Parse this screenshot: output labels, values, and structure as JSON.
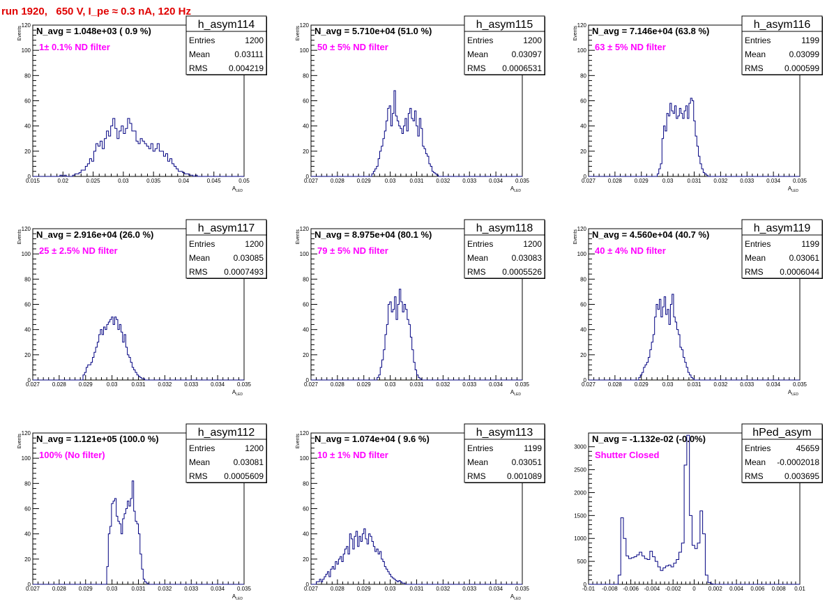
{
  "page_title": "run 1920,   650 V, I_pe ≈ 0.3 nA, 120 Hz",
  "colors": {
    "hist": "#000080",
    "magenta": "#ff00ff",
    "title": "#e00000"
  },
  "chart_data": [
    {
      "type": "bar",
      "name": "h_asym114",
      "nlabel": "N_avg = 1.048e+03 ( 0.9 %)",
      "note": "1± 0.1% ND filter",
      "stats": {
        "Entries": "1200",
        "Mean": "0.03111",
        "RMS": "0.004219"
      },
      "xlabel": "A",
      "xlabel_sub": "LED",
      "ylabel": "Events",
      "xlim": [
        0.015,
        0.05
      ],
      "ylim": [
        0,
        120
      ],
      "xticks": [
        "0.015",
        "0.02",
        "0.025",
        "0.03",
        "0.035",
        "0.04",
        "0.045",
        "0.05"
      ],
      "yticks": [
        "0",
        "20",
        "40",
        "60",
        "80",
        "100",
        "120"
      ],
      "bin_start": 0.0195,
      "bin_width": 0.00035,
      "values": [
        1,
        0,
        1,
        0,
        0,
        0,
        1,
        2,
        2,
        3,
        5,
        5,
        8,
        10,
        14,
        12,
        20,
        26,
        24,
        28,
        22,
        30,
        36,
        32,
        40,
        46,
        38,
        30,
        36,
        40,
        34,
        38,
        46,
        42,
        36,
        36,
        28,
        26,
        30,
        28,
        26,
        24,
        22,
        26,
        20,
        22,
        26,
        20,
        20,
        16,
        18,
        12,
        14,
        10,
        8,
        6,
        4,
        4,
        3,
        2,
        2,
        1,
        1,
        0,
        1,
        0
      ]
    },
    {
      "type": "bar",
      "name": "h_asym115",
      "nlabel": "N_avg = 5.710e+04 (51.0 %)",
      "note": "50 ± 5% ND filter",
      "stats": {
        "Entries": "1200",
        "Mean": "0.03097",
        "RMS": "0.0006531"
      },
      "xlabel": "A",
      "xlabel_sub": "LED",
      "ylabel": "Events",
      "xlim": [
        0.027,
        0.035
      ],
      "ylim": [
        0,
        120
      ],
      "xticks": [
        "0.027",
        "0.028",
        "0.029",
        "0.03",
        "0.031",
        "0.032",
        "0.033",
        "0.034",
        "0.035"
      ],
      "yticks": [
        "0",
        "20",
        "40",
        "60",
        "80",
        "100",
        "120"
      ],
      "bin_start": 0.0293,
      "bin_width": 6e-05,
      "values": [
        2,
        4,
        6,
        8,
        14,
        20,
        24,
        30,
        36,
        44,
        54,
        56,
        40,
        50,
        68,
        48,
        44,
        40,
        38,
        34,
        40,
        46,
        36,
        50,
        54,
        46,
        44,
        52,
        40,
        32,
        46,
        38,
        24,
        22,
        18,
        16,
        10,
        8,
        4,
        3,
        2,
        1
      ]
    },
    {
      "type": "bar",
      "name": "h_asym116",
      "nlabel": "N_avg = 7.146e+04 (63.8 %)",
      "note": "63 ± 5% ND filter",
      "stats": {
        "Entries": "1199",
        "Mean": "0.03099",
        "RMS": "0.000599"
      },
      "xlabel": "A",
      "xlabel_sub": "LED",
      "ylabel": "Events",
      "xlim": [
        0.027,
        0.035
      ],
      "ylim": [
        0,
        120
      ],
      "xticks": [
        "0.027",
        "0.028",
        "0.029",
        "0.03",
        "0.031",
        "0.032",
        "0.033",
        "0.034",
        "0.035"
      ],
      "yticks": [
        "0",
        "20",
        "40",
        "60",
        "80",
        "100",
        "120"
      ],
      "bin_start": 0.0296,
      "bin_width": 6e-05,
      "values": [
        2,
        6,
        10,
        30,
        40,
        36,
        50,
        48,
        58,
        52,
        50,
        56,
        46,
        48,
        54,
        50,
        46,
        52,
        56,
        46,
        58,
        62,
        60,
        44,
        32,
        24,
        16,
        10,
        6,
        3,
        2,
        1
      ]
    },
    {
      "type": "bar",
      "name": "h_asym117",
      "nlabel": "N_avg = 2.916e+04 (26.0 %)",
      "note": "25 ± 2.5% ND filter",
      "stats": {
        "Entries": "1200",
        "Mean": "0.03085",
        "RMS": "0.0007493"
      },
      "xlabel": "A",
      "xlabel_sub": "LED",
      "ylabel": "Events",
      "xlim": [
        0.027,
        0.035
      ],
      "ylim": [
        0,
        120
      ],
      "xticks": [
        "0.027",
        "0.028",
        "0.029",
        "0.03",
        "0.031",
        "0.032",
        "0.033",
        "0.034",
        "0.035"
      ],
      "yticks": [
        "0",
        "20",
        "40",
        "60",
        "80",
        "100",
        "120"
      ],
      "bin_start": 0.0289,
      "bin_width": 6e-05,
      "values": [
        4,
        6,
        10,
        12,
        12,
        14,
        18,
        22,
        26,
        30,
        36,
        40,
        36,
        42,
        40,
        44,
        46,
        48,
        50,
        44,
        50,
        48,
        40,
        44,
        38,
        30,
        36,
        26,
        20,
        18,
        14,
        10,
        8,
        6,
        4,
        3,
        2,
        1,
        1
      ]
    },
    {
      "type": "bar",
      "name": "h_asym118",
      "nlabel": "N_avg = 8.975e+04 (80.1 %)",
      "note": "79 ± 5% ND filter",
      "stats": {
        "Entries": "1200",
        "Mean": "0.03083",
        "RMS": "0.0005526"
      },
      "xlabel": "A",
      "xlabel_sub": "LED",
      "ylabel": "Events",
      "xlim": [
        0.027,
        0.035
      ],
      "ylim": [
        0,
        120
      ],
      "xticks": [
        "0.027",
        "0.028",
        "0.029",
        "0.03",
        "0.031",
        "0.032",
        "0.033",
        "0.034",
        "0.035"
      ],
      "yticks": [
        "0",
        "20",
        "40",
        "60",
        "80",
        "100",
        "120"
      ],
      "bin_start": 0.0295,
      "bin_width": 6e-05,
      "values": [
        2,
        4,
        10,
        16,
        24,
        36,
        44,
        60,
        62,
        54,
        56,
        66,
        48,
        60,
        72,
        62,
        54,
        60,
        56,
        48,
        44,
        34,
        24,
        14,
        8,
        4,
        2,
        1
      ]
    },
    {
      "type": "bar",
      "name": "h_asym119",
      "nlabel": "N_avg = 4.560e+04 (40.7 %)",
      "note": "40 ± 4% ND filter",
      "stats": {
        "Entries": "1199",
        "Mean": "0.03061",
        "RMS": "0.0006044"
      },
      "xlabel": "A",
      "xlabel_sub": "LED",
      "ylabel": "Events",
      "xlim": [
        0.027,
        0.035
      ],
      "ylim": [
        0,
        120
      ],
      "xticks": [
        "0.027",
        "0.028",
        "0.029",
        "0.03",
        "0.031",
        "0.032",
        "0.033",
        "0.034",
        "0.035"
      ],
      "yticks": [
        "0",
        "20",
        "40",
        "60",
        "80",
        "100",
        "120"
      ],
      "bin_start": 0.0289,
      "bin_width": 6e-05,
      "values": [
        2,
        4,
        6,
        10,
        12,
        14,
        18,
        24,
        30,
        36,
        50,
        60,
        56,
        64,
        50,
        58,
        66,
        52,
        56,
        44,
        60,
        68,
        50,
        46,
        40,
        36,
        26,
        24,
        18,
        14,
        10,
        6,
        4,
        2,
        1
      ]
    },
    {
      "type": "bar",
      "name": "h_asym112",
      "nlabel": "N_avg = 1.121e+05 (100.0 %)",
      "note": "100% (No filter)",
      "stats": {
        "Entries": "1200",
        "Mean": "0.03081",
        "RMS": "0.0005609"
      },
      "xlabel": "A",
      "xlabel_sub": "LED",
      "ylabel": "Events",
      "xlim": [
        0.027,
        0.035
      ],
      "ylim": [
        0,
        120
      ],
      "xticks": [
        "0.027",
        "0.028",
        "0.029",
        "0.03",
        "0.031",
        "0.032",
        "0.033",
        "0.034",
        "0.035"
      ],
      "yticks": [
        "0",
        "20",
        "40",
        "60",
        "80",
        "100",
        "120"
      ],
      "bin_start": 0.0298,
      "bin_width": 6e-05,
      "values": [
        14,
        40,
        46,
        64,
        66,
        68,
        54,
        50,
        48,
        40,
        52,
        56,
        60,
        66,
        62,
        68,
        82,
        58,
        50,
        48,
        40,
        24,
        12,
        4,
        2,
        1
      ]
    },
    {
      "type": "bar",
      "name": "h_asym113",
      "nlabel": "N_avg = 1.074e+04 ( 9.6 %)",
      "note": "10 ± 1% ND filter",
      "stats": {
        "Entries": "1199",
        "Mean": "0.03051",
        "RMS": "0.001089"
      },
      "xlabel": "A",
      "xlabel_sub": "LED",
      "ylabel": "Events",
      "xlim": [
        0.027,
        0.035
      ],
      "ylim": [
        0,
        120
      ],
      "xticks": [
        "0.027",
        "0.028",
        "0.029",
        "0.03",
        "0.031",
        "0.032",
        "0.033",
        "0.034",
        "0.035"
      ],
      "yticks": [
        "0",
        "20",
        "40",
        "60",
        "80",
        "100",
        "120"
      ],
      "bin_start": 0.0272,
      "bin_width": 6e-05,
      "values": [
        2,
        2,
        4,
        2,
        4,
        6,
        8,
        10,
        6,
        12,
        14,
        12,
        18,
        16,
        20,
        22,
        18,
        24,
        28,
        30,
        24,
        40,
        36,
        28,
        38,
        42,
        30,
        38,
        34,
        40,
        44,
        36,
        32,
        40,
        38,
        34,
        30,
        26,
        28,
        24,
        26,
        20,
        18,
        14,
        12,
        10,
        8,
        6,
        5,
        4,
        3,
        2,
        3,
        2,
        1,
        1
      ]
    },
    {
      "type": "bar",
      "name": "hPed_asym",
      "nlabel": "N_avg = -1.132e-02 (-0.0%)",
      "note": "Shutter Closed",
      "stats": {
        "Entries": "45659",
        "Mean": "-0.0002018",
        "RMS": "0.003695"
      },
      "xlabel": "",
      "xlabel_sub": "",
      "ylabel": "",
      "xlim": [
        -0.01,
        0.01
      ],
      "ylim": [
        0,
        3300
      ],
      "xticks": [
        "-0.01",
        "-0.008",
        "-0.006",
        "-0.004",
        "-0.002",
        "0",
        "0.002",
        "0.004",
        "0.006",
        "0.008",
        "0.01"
      ],
      "yticks": [
        "0",
        "500",
        "1000",
        "1500",
        "2000",
        "2500",
        "3000"
      ],
      "bin_start": -0.0072,
      "bin_width": 0.00025,
      "values": [
        200,
        1450,
        1000,
        620,
        560,
        580,
        600,
        640,
        700,
        620,
        560,
        540,
        720,
        600,
        500,
        380,
        300,
        360,
        400,
        420,
        380,
        460,
        540,
        700,
        900,
        2600,
        3250,
        1500,
        850,
        780,
        900,
        1600,
        1100,
        200,
        40,
        10
      ]
    }
  ]
}
